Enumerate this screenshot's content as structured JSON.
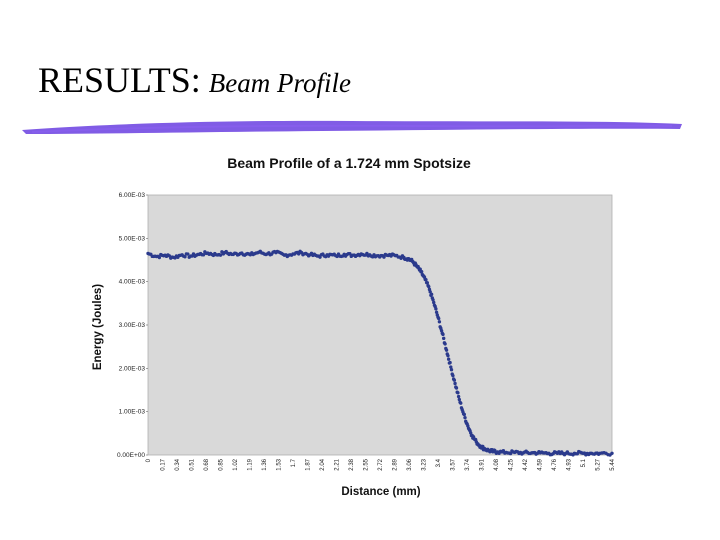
{
  "slide": {
    "title_main": "RESULTS:",
    "title_sub": "Beam Profile"
  },
  "colors": {
    "accent_rule": "#6a3fe0",
    "plot_background": "#d9d9d9",
    "series_color": "#2b3a8c"
  },
  "chart_data": {
    "type": "scatter",
    "title": "Beam Profile of a 1.724 mm Spotsize",
    "xlabel": "Distance (mm)",
    "ylabel": "Energy (Joules)",
    "ylim": [
      0,
      0.006
    ],
    "xlim": [
      0,
      5.44
    ],
    "grid": false,
    "legend": "none",
    "y_tick_labels": [
      "0.00E+00",
      "1.00E-03",
      "2.00E-03",
      "3.00E-03",
      "4.00E-03",
      "5.00E-03",
      "6.00E-03"
    ],
    "x_tick_labels": [
      "0",
      "0.17",
      "0.34",
      "0.51",
      "0.68",
      "0.85",
      "1.02",
      "1.19",
      "1.36",
      "1.53",
      "1.7",
      "1.87",
      "2.04",
      "2.21",
      "2.38",
      "2.55",
      "2.72",
      "2.89",
      "3.06",
      "3.23",
      "3.4",
      "3.57",
      "3.74",
      "3.91",
      "4.08",
      "4.25",
      "4.42",
      "4.59",
      "4.76",
      "4.93",
      "5.1",
      "5.27",
      "5.44"
    ],
    "x_tick_values": [
      0,
      0.17,
      0.34,
      0.51,
      0.68,
      0.85,
      1.02,
      1.19,
      1.36,
      1.53,
      1.7,
      1.87,
      2.04,
      2.21,
      2.38,
      2.55,
      2.72,
      2.89,
      3.06,
      3.23,
      3.4,
      3.57,
      3.74,
      3.91,
      4.08,
      4.25,
      4.42,
      4.59,
      4.76,
      4.93,
      5.1,
      5.27,
      5.44
    ],
    "series": [
      {
        "x": [
          0,
          0.1,
          0.2,
          0.3,
          0.4,
          0.5,
          0.6,
          0.7,
          0.8,
          0.9,
          1.0,
          1.1,
          1.2,
          1.3,
          1.4,
          1.5,
          1.6,
          1.7,
          1.8,
          1.9,
          2.0,
          2.1,
          2.2,
          2.3,
          2.4,
          2.5,
          2.6,
          2.7,
          2.8,
          2.9,
          3.0,
          3.05,
          3.1,
          3.15,
          3.2,
          3.25,
          3.3,
          3.35,
          3.4,
          3.45,
          3.5,
          3.55,
          3.6,
          3.65,
          3.7,
          3.75,
          3.8,
          3.85,
          3.9,
          3.95,
          4.0,
          4.05,
          4.1,
          4.2,
          4.3,
          4.4,
          4.5,
          4.6,
          4.7,
          4.8,
          4.9,
          5.0,
          5.1,
          5.2,
          5.3,
          5.44
        ],
        "y": [
          0.00465,
          0.00458,
          0.00461,
          0.00456,
          0.00462,
          0.00459,
          0.00463,
          0.00466,
          0.00462,
          0.00467,
          0.00463,
          0.00466,
          0.00462,
          0.00468,
          0.00464,
          0.00467,
          0.00461,
          0.00464,
          0.00467,
          0.00462,
          0.00459,
          0.00462,
          0.0046,
          0.00463,
          0.00461,
          0.00464,
          0.00462,
          0.0046,
          0.00461,
          0.0046,
          0.00456,
          0.00453,
          0.00447,
          0.00436,
          0.00423,
          0.00405,
          0.00382,
          0.00352,
          0.00318,
          0.00281,
          0.00242,
          0.00203,
          0.00165,
          0.00128,
          0.00095,
          0.00067,
          0.00045,
          0.0003,
          0.0002,
          0.00014,
          0.0001,
          8e-05,
          7e-05,
          6e-05,
          6e-05,
          5e-05,
          5e-05,
          5e-05,
          4e-05,
          4e-05,
          4e-05,
          4e-05,
          4e-05,
          4e-05,
          4e-05,
          4e-05
        ]
      }
    ]
  }
}
